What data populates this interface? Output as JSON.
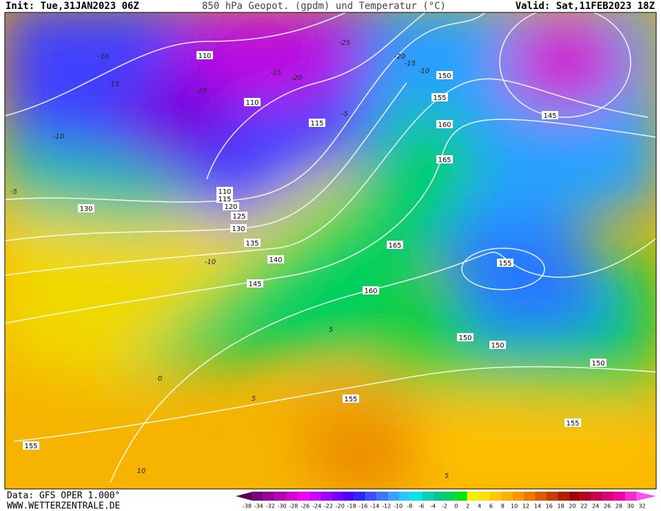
{
  "header": {
    "init": "Init: Tue,31JAN2023 06Z",
    "title": "850 hPa Geopot. (gpdm) und Temperatur (°C)",
    "valid": "Valid: Sat,11FEB2023 18Z"
  },
  "footer": {
    "data": "Data: GFS OPER 1.000°",
    "url": "WWW.WETTERZENTRALE.DE"
  },
  "colorbar": {
    "ticks": [
      -38,
      -34,
      -32,
      -30,
      -28,
      -26,
      -24,
      -22,
      -20,
      -18,
      -16,
      -14,
      -12,
      -10,
      -8,
      -6,
      -4,
      -2,
      0,
      2,
      4,
      6,
      8,
      10,
      12,
      14,
      16,
      18,
      20,
      22,
      24,
      26,
      28,
      30,
      32
    ],
    "colors": [
      "#5a0050",
      "#780078",
      "#960096",
      "#b400b4",
      "#d200d2",
      "#f000f0",
      "#c800ff",
      "#a000ff",
      "#7800ff",
      "#5000ff",
      "#2828ff",
      "#3c50ff",
      "#3c78ff",
      "#3ca0ff",
      "#28c8ff",
      "#00e6e6",
      "#00d2b4",
      "#00c88c",
      "#00d25a",
      "#00e600",
      "#f0f000",
      "#ffe100",
      "#ffc800",
      "#ffaf00",
      "#ff9600",
      "#f07800",
      "#dc5a00",
      "#c83c00",
      "#b41e00",
      "#a00000",
      "#b40028",
      "#c80050",
      "#dc0078",
      "#f000a0",
      "#ff28c8",
      "#ff50f0"
    ]
  },
  "geopotential_labels": [
    110,
    110,
    115,
    110,
    115,
    120,
    125,
    130,
    135,
    140,
    145,
    150,
    155,
    160,
    165,
    165,
    160,
    155,
    150,
    150,
    150,
    155,
    155,
    155,
    130,
    145
  ],
  "temperature_labels": [
    -10,
    -15,
    -10,
    -5,
    -10,
    -25,
    -20,
    -15,
    -10,
    -15,
    -20,
    -5,
    0,
    5,
    5,
    10,
    5,
    -25
  ]
}
